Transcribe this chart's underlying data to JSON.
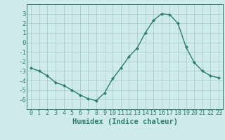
{
  "x": [
    0,
    1,
    2,
    3,
    4,
    5,
    6,
    7,
    8,
    9,
    10,
    11,
    12,
    13,
    14,
    15,
    16,
    17,
    18,
    19,
    20,
    21,
    22,
    23
  ],
  "y": [
    -2.7,
    -3.0,
    -3.5,
    -4.2,
    -4.5,
    -5.0,
    -5.5,
    -5.9,
    -6.1,
    -5.3,
    -3.8,
    -2.7,
    -1.5,
    -0.6,
    1.0,
    2.3,
    3.0,
    2.9,
    2.0,
    -0.5,
    -2.1,
    -3.0,
    -3.5,
    -3.7
  ],
  "line_color": "#2e7d6e",
  "marker": "D",
  "marker_size": 2.2,
  "bg_color": "#ceeaea",
  "grid_color": "#aacece",
  "xlabel": "Humidex (Indice chaleur)",
  "ylim": [
    -7,
    4
  ],
  "xlim": [
    -0.5,
    23.5
  ],
  "yticks": [
    -6,
    -5,
    -4,
    -3,
    -2,
    -1,
    0,
    1,
    2,
    3
  ],
  "xticks": [
    0,
    1,
    2,
    3,
    4,
    5,
    6,
    7,
    8,
    9,
    10,
    11,
    12,
    13,
    14,
    15,
    16,
    17,
    18,
    19,
    20,
    21,
    22,
    23
  ],
  "xlabel_fontsize": 7.5,
  "tick_fontsize": 6.5,
  "line_color_dark": "#1a5c50",
  "spine_color": "#2e7d6e"
}
